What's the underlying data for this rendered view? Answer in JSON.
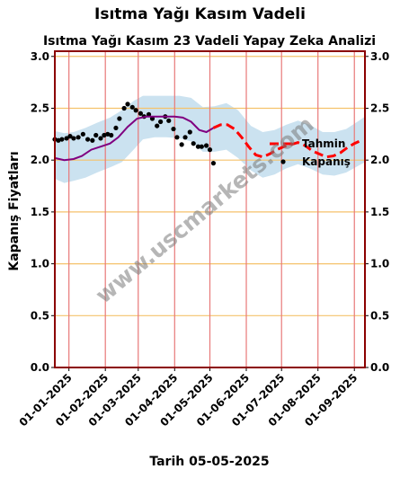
{
  "figure": {
    "suptitle": "Isıtma Yağı Kasım Vadeli",
    "footer": "Tarih 05-05-2025",
    "watermark": "www.uscmarkets.com"
  },
  "chart_data": {
    "type": "line",
    "title": "Isıtma Yağı Kasım 23 Vadeli Yapay Zeka Analizi",
    "xlabel": "",
    "ylabel": "Kapanış Fiyatları",
    "xlim": [
      "2024-12-20",
      "2025-09-10"
    ],
    "ylim": [
      0,
      3.05
    ],
    "y_ticks": [
      "0.0",
      "0.5",
      "1.0",
      "1.5",
      "2.0",
      "2.5",
      "3.0"
    ],
    "y_tick_values": [
      0,
      0.5,
      1.0,
      1.5,
      2.0,
      2.5,
      3.0
    ],
    "x_ticks": [
      "01-01-2025",
      "01-02-2025",
      "01-03-2025",
      "01-04-2025",
      "01-05-2025",
      "01-06-2025",
      "01-07-2025",
      "01-08-2025",
      "01-09-2025"
    ],
    "x_tick_dates": [
      "2025-01-01",
      "2025-02-01",
      "2025-03-01",
      "2025-04-01",
      "2025-05-01",
      "2025-06-01",
      "2025-07-01",
      "2025-08-01",
      "2025-09-01"
    ],
    "grid": true,
    "legend_position": "right",
    "colors": {
      "close": "#000000",
      "trend": "#800080",
      "forecast": "#ff0000",
      "band": "#a8cfe6",
      "hgrid": "#f5c26b",
      "vgrid": "#e87878",
      "frame": "#8b0000"
    },
    "series": [
      {
        "name": "Kapanış",
        "style": "dots",
        "x": [
          "2024-12-20",
          "2024-12-23",
          "2024-12-26",
          "2024-12-30",
          "2025-01-02",
          "2025-01-05",
          "2025-01-09",
          "2025-01-13",
          "2025-01-17",
          "2025-01-21",
          "2025-01-24",
          "2025-01-28",
          "2025-01-31",
          "2025-02-03",
          "2025-02-06",
          "2025-02-10",
          "2025-02-13",
          "2025-02-17",
          "2025-02-20",
          "2025-02-24",
          "2025-02-27",
          "2025-03-03",
          "2025-03-06",
          "2025-03-10",
          "2025-03-13",
          "2025-03-17",
          "2025-03-20",
          "2025-03-24",
          "2025-03-27",
          "2025-03-31",
          "2025-04-03",
          "2025-04-07",
          "2025-04-10",
          "2025-04-14",
          "2025-04-17",
          "2025-04-21",
          "2025-04-24",
          "2025-04-28",
          "2025-05-01",
          "2025-05-04"
        ],
        "y": [
          2.2,
          2.19,
          2.2,
          2.21,
          2.23,
          2.21,
          2.22,
          2.25,
          2.2,
          2.19,
          2.24,
          2.21,
          2.24,
          2.25,
          2.24,
          2.31,
          2.4,
          2.5,
          2.54,
          2.51,
          2.48,
          2.45,
          2.42,
          2.44,
          2.4,
          2.33,
          2.37,
          2.42,
          2.38,
          2.3,
          2.22,
          2.15,
          2.22,
          2.27,
          2.16,
          2.13,
          2.13,
          2.14,
          2.1,
          1.97
        ]
      },
      {
        "name": "Trend",
        "style": "line",
        "x": [
          "2024-12-20",
          "2024-12-28",
          "2025-01-05",
          "2025-01-12",
          "2025-01-20",
          "2025-01-28",
          "2025-02-05",
          "2025-02-12",
          "2025-02-20",
          "2025-02-28",
          "2025-03-08",
          "2025-03-16",
          "2025-03-24",
          "2025-04-01",
          "2025-04-08",
          "2025-04-15",
          "2025-04-22",
          "2025-04-28",
          "2025-05-04"
        ],
        "y": [
          2.02,
          2.0,
          2.01,
          2.04,
          2.1,
          2.13,
          2.16,
          2.22,
          2.32,
          2.4,
          2.42,
          2.42,
          2.42,
          2.42,
          2.41,
          2.37,
          2.29,
          2.27,
          2.31
        ]
      },
      {
        "name": "Tahmin",
        "style": "dashed",
        "x": [
          "2025-05-04",
          "2025-05-10",
          "2025-05-16",
          "2025-05-22",
          "2025-05-28",
          "2025-06-03",
          "2025-06-09",
          "2025-06-15",
          "2025-06-21",
          "2025-06-27",
          "2025-07-03",
          "2025-07-09",
          "2025-07-15",
          "2025-07-21",
          "2025-07-27",
          "2025-08-02",
          "2025-08-08",
          "2025-08-14",
          "2025-08-20",
          "2025-08-26",
          "2025-09-01",
          "2025-09-07"
        ],
        "y": [
          2.31,
          2.34,
          2.34,
          2.3,
          2.22,
          2.13,
          2.05,
          2.03,
          2.06,
          2.1,
          2.13,
          2.15,
          2.17,
          2.14,
          2.09,
          2.06,
          2.03,
          2.04,
          2.07,
          2.12,
          2.16,
          2.19
        ]
      }
    ],
    "band": {
      "x": [
        "2024-12-20",
        "2024-12-28",
        "2025-01-05",
        "2025-01-15",
        "2025-01-25",
        "2025-02-05",
        "2025-02-15",
        "2025-02-25",
        "2025-03-05",
        "2025-03-15",
        "2025-03-25",
        "2025-04-05",
        "2025-04-15",
        "2025-04-25",
        "2025-05-05",
        "2025-05-15",
        "2025-05-25",
        "2025-06-05",
        "2025-06-15",
        "2025-06-25",
        "2025-07-05",
        "2025-07-15",
        "2025-07-25",
        "2025-08-05",
        "2025-08-15",
        "2025-08-25",
        "2025-09-05",
        "2025-09-10"
      ],
      "upper": [
        2.28,
        2.26,
        2.27,
        2.31,
        2.36,
        2.41,
        2.48,
        2.57,
        2.62,
        2.62,
        2.62,
        2.62,
        2.6,
        2.51,
        2.52,
        2.55,
        2.48,
        2.33,
        2.27,
        2.29,
        2.34,
        2.38,
        2.34,
        2.27,
        2.27,
        2.3,
        2.38,
        2.42
      ],
      "lower": [
        1.82,
        1.78,
        1.8,
        1.83,
        1.88,
        1.93,
        1.98,
        2.1,
        2.2,
        2.22,
        2.22,
        2.21,
        2.18,
        2.08,
        2.08,
        2.1,
        2.02,
        1.9,
        1.83,
        1.86,
        1.92,
        1.96,
        1.92,
        1.86,
        1.85,
        1.88,
        1.95,
        1.98
      ]
    }
  }
}
